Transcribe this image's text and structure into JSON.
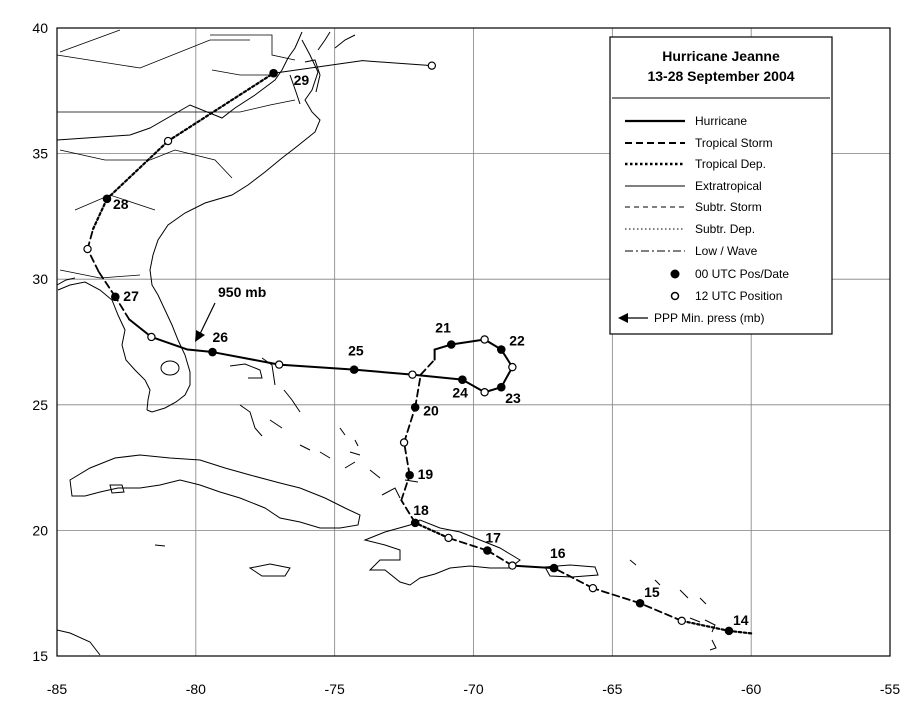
{
  "title_line1": "Hurricane Jeanne",
  "title_line2": "13-28 September 2004",
  "pressure_label": "950 mb",
  "legend": {
    "hurricane": "Hurricane",
    "tropical_storm": "Tropical Storm",
    "tropical_dep": "Tropical Dep.",
    "extratropical": "Extratropical",
    "subtr_storm": "Subtr. Storm",
    "subtr_dep": "Subtr. Dep.",
    "low_wave": "Low / Wave",
    "utc00": "00 UTC Pos/Date",
    "utc12": "12 UTC Position",
    "ppp": "PPP  Min. press (mb)"
  },
  "x_ticks": [
    "-85",
    "-80",
    "-75",
    "-70",
    "-65",
    "-60",
    "-55"
  ],
  "y_ticks": [
    "40",
    "35",
    "30",
    "25",
    "20",
    "15"
  ],
  "chart_data": {
    "type": "map-track",
    "lon_range": [
      -85,
      -55
    ],
    "lat_range": [
      15,
      40
    ],
    "track": [
      {
        "lon": -60.0,
        "lat": 15.9,
        "stage": "TD"
      },
      {
        "lon": -60.8,
        "lat": 16.0,
        "stage": "TD",
        "marker": "00",
        "date": "14"
      },
      {
        "lon": -62.5,
        "lat": 16.4,
        "stage": "TD",
        "marker": "12"
      },
      {
        "lon": -64.0,
        "lat": 17.1,
        "stage": "TS",
        "marker": "00",
        "date": "15"
      },
      {
        "lon": -65.7,
        "lat": 17.7,
        "stage": "TS",
        "marker": "12"
      },
      {
        "lon": -67.1,
        "lat": 18.5,
        "stage": "TS",
        "marker": "00",
        "date": "16"
      },
      {
        "lon": -68.6,
        "lat": 18.6,
        "stage": "H",
        "marker": "12"
      },
      {
        "lon": -69.5,
        "lat": 19.2,
        "stage": "TS",
        "marker": "00",
        "date": "17"
      },
      {
        "lon": -70.9,
        "lat": 19.7,
        "stage": "TS",
        "marker": "12"
      },
      {
        "lon": -72.1,
        "lat": 20.3,
        "stage": "TD",
        "marker": "00",
        "date": "18"
      },
      {
        "lon": -72.6,
        "lat": 21.2,
        "stage": "TS"
      },
      {
        "lon": -72.3,
        "lat": 22.2,
        "stage": "TS",
        "marker": "00",
        "date": "19"
      },
      {
        "lon": -72.5,
        "lat": 23.5,
        "stage": "TS",
        "marker": "12"
      },
      {
        "lon": -72.1,
        "lat": 24.9,
        "stage": "TS",
        "marker": "00",
        "date": "20"
      },
      {
        "lon": -71.9,
        "lat": 26.2,
        "stage": "TS"
      },
      {
        "lon": -71.4,
        "lat": 26.8,
        "stage": "TS"
      },
      {
        "lon": -71.4,
        "lat": 27.2,
        "stage": "H"
      },
      {
        "lon": -70.8,
        "lat": 27.4,
        "stage": "H",
        "marker": "00",
        "date": "21"
      },
      {
        "lon": -69.6,
        "lat": 27.6,
        "stage": "H",
        "marker": "12"
      },
      {
        "lon": -69.0,
        "lat": 27.2,
        "stage": "H",
        "marker": "00",
        "date": "22"
      },
      {
        "lon": -68.6,
        "lat": 26.5,
        "stage": "H",
        "marker": "12"
      },
      {
        "lon": -69.0,
        "lat": 25.7,
        "stage": "H",
        "marker": "00",
        "date": "23"
      },
      {
        "lon": -69.6,
        "lat": 25.5,
        "stage": "H",
        "marker": "12"
      },
      {
        "lon": -70.4,
        "lat": 26.0,
        "stage": "H",
        "marker": "00",
        "date": "24"
      },
      {
        "lon": -72.2,
        "lat": 26.2,
        "stage": "H",
        "marker": "12"
      },
      {
        "lon": -74.3,
        "lat": 26.4,
        "stage": "H",
        "marker": "00",
        "date": "25"
      },
      {
        "lon": -77.0,
        "lat": 26.6,
        "stage": "H",
        "marker": "12"
      },
      {
        "lon": -79.4,
        "lat": 27.1,
        "stage": "H",
        "marker": "00",
        "date": "26"
      },
      {
        "lon": -80.3,
        "lat": 27.2,
        "stage": "H"
      },
      {
        "lon": -81.6,
        "lat": 27.7,
        "stage": "H",
        "marker": "12"
      },
      {
        "lon": -82.4,
        "lat": 28.4,
        "stage": "H"
      },
      {
        "lon": -82.9,
        "lat": 29.3,
        "stage": "TS",
        "marker": "00",
        "date": "27"
      },
      {
        "lon": -83.5,
        "lat": 30.3,
        "stage": "TS"
      },
      {
        "lon": -83.9,
        "lat": 31.2,
        "stage": "TS",
        "marker": "12"
      },
      {
        "lon": -83.7,
        "lat": 32.0,
        "stage": "TS"
      },
      {
        "lon": -83.2,
        "lat": 33.2,
        "stage": "TD",
        "marker": "00",
        "date": "28"
      },
      {
        "lon": -81.0,
        "lat": 35.5,
        "stage": "TD",
        "marker": "12"
      },
      {
        "lon": -77.2,
        "lat": 38.2,
        "stage": "TD",
        "marker": "00",
        "date": "29"
      },
      {
        "lon": -74.0,
        "lat": 38.7,
        "stage": "EX"
      },
      {
        "lon": -71.5,
        "lat": 38.5,
        "stage": "EX",
        "marker": "12"
      }
    ],
    "min_pressure": {
      "value": "950 mb",
      "lon": -80.0,
      "lat": 27.4
    }
  }
}
